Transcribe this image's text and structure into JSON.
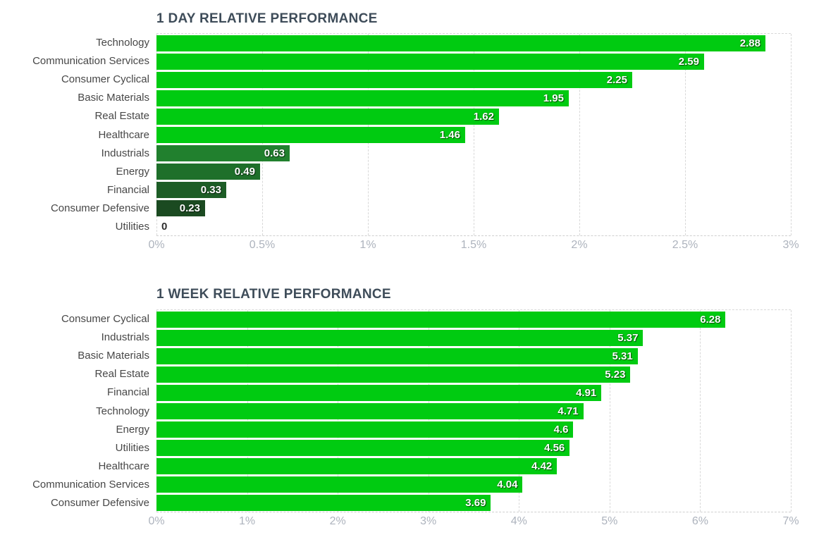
{
  "page": {
    "background_color": "#ffffff"
  },
  "theme": {
    "title_color": "#3e4c59",
    "category_label_color": "#474747",
    "axis_tick_color": "#adb3bd",
    "grid_color": "#d8d8d8",
    "value_label_color": "#ffffff",
    "zero_value_label_color": "#2e2e2e",
    "bright_green": "#00cb11"
  },
  "chart_data": [
    {
      "type": "bar",
      "orientation": "horizontal",
      "title": "1 DAY RELATIVE PERFORMANCE",
      "categories": [
        "Technology",
        "Communication Services",
        "Consumer Cyclical",
        "Basic Materials",
        "Real Estate",
        "Healthcare",
        "Industrials",
        "Energy",
        "Financial",
        "Consumer Defensive",
        "Utilities"
      ],
      "values": [
        2.88,
        2.59,
        2.25,
        1.95,
        1.62,
        1.46,
        0.63,
        0.49,
        0.33,
        0.23,
        0
      ],
      "value_labels": [
        "2.88",
        "2.59",
        "2.25",
        "1.95",
        "1.62",
        "1.46",
        "0.63",
        "0.49",
        "0.33",
        "0.23",
        "0"
      ],
      "bar_colors": [
        "#00cb11",
        "#00cb11",
        "#00cb11",
        "#00cb11",
        "#00cb11",
        "#00cb11",
        "#21802e",
        "#1e6f2a",
        "#1d5d26",
        "#1b4a21",
        null
      ],
      "xlabel": "",
      "ylabel": "",
      "xlim": [
        0,
        3
      ],
      "tick_values": [
        0,
        0.5,
        1,
        1.5,
        2,
        2.5,
        3
      ],
      "tick_labels": [
        "0%",
        "0.5%",
        "1%",
        "1.5%",
        "2%",
        "2.5%",
        "3%"
      ],
      "grid": "dashed-vertical",
      "legend": "none"
    },
    {
      "type": "bar",
      "orientation": "horizontal",
      "title": "1 WEEK RELATIVE PERFORMANCE",
      "categories": [
        "Consumer Cyclical",
        "Industrials",
        "Basic Materials",
        "Real Estate",
        "Financial",
        "Technology",
        "Energy",
        "Utilities",
        "Healthcare",
        "Communication Services",
        "Consumer Defensive"
      ],
      "values": [
        6.28,
        5.37,
        5.31,
        5.23,
        4.91,
        4.71,
        4.6,
        4.56,
        4.42,
        4.04,
        3.69
      ],
      "value_labels": [
        "6.28",
        "5.37",
        "5.31",
        "5.23",
        "4.91",
        "4.71",
        "4.6",
        "4.56",
        "4.42",
        "4.04",
        "3.69"
      ],
      "bar_colors": [
        "#00cb11",
        "#00cb11",
        "#00cb11",
        "#00cb11",
        "#00cb11",
        "#00cb11",
        "#00cb11",
        "#00cb11",
        "#00cb11",
        "#00cb11",
        "#00cb11"
      ],
      "xlabel": "",
      "ylabel": "",
      "xlim": [
        0,
        7
      ],
      "tick_values": [
        0,
        1,
        2,
        3,
        4,
        5,
        6,
        7
      ],
      "tick_labels": [
        "0%",
        "1%",
        "2%",
        "3%",
        "4%",
        "5%",
        "6%",
        "7%"
      ],
      "grid": "dashed-vertical",
      "legend": "none"
    }
  ]
}
